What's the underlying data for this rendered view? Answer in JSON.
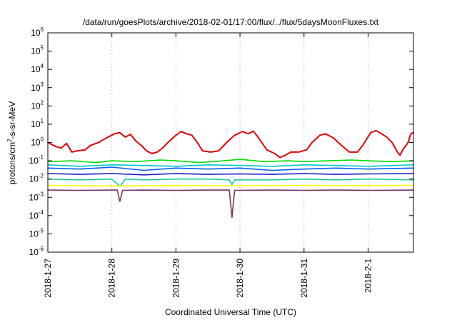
{
  "chart_data": {
    "type": "line",
    "title": "/data/run/goesPlots/archive/2018-02-01/17:00/flux/../flux/5daysMoonFluxes.txt",
    "xlabel": "Coordinated Universal Time (UTC)",
    "ylabel": {
      "prefix": "protons/cm",
      "sup": "2",
      "suffix": "-s-sr-MeV"
    },
    "y_scale": "log",
    "ylim": [
      1e-06,
      1000000.0
    ],
    "y_ticks": [
      {
        "base": "10",
        "exp": "-6",
        "value": 1e-06
      },
      {
        "base": "10",
        "exp": "-5",
        "value": 1e-05
      },
      {
        "base": "10",
        "exp": "-4",
        "value": 0.0001
      },
      {
        "base": "10",
        "exp": "-3",
        "value": 0.001
      },
      {
        "base": "10",
        "exp": "-2",
        "value": 0.01
      },
      {
        "base": "10",
        "exp": "-1",
        "value": 0.1
      },
      {
        "base": "10",
        "exp": "0",
        "value": 1
      },
      {
        "base": "10",
        "exp": "1",
        "value": 10
      },
      {
        "base": "10",
        "exp": "2",
        "value": 100
      },
      {
        "base": "10",
        "exp": "3",
        "value": 1000
      },
      {
        "base": "10",
        "exp": "4",
        "value": 10000
      },
      {
        "base": "10",
        "exp": "5",
        "value": 100000
      },
      {
        "base": "10",
        "exp": "6",
        "value": 1000000
      }
    ],
    "x_axis": "time",
    "xlim": [
      "2018-01-27T00:00",
      "2018-02-01T17:00"
    ],
    "x_ticks": [
      {
        "label": "2018-1-27",
        "t": "2018-01-27T00:00"
      },
      {
        "label": "2018-1-28",
        "t": "2018-01-28T00:00"
      },
      {
        "label": "2018-1-29",
        "t": "2018-01-29T00:00"
      },
      {
        "label": "2018-1-30",
        "t": "2018-01-30T00:00"
      },
      {
        "label": "2018-1-31",
        "t": "2018-01-31T00:00"
      },
      {
        "label": "2018-2-1",
        "t": "2018-02-01T00:00"
      }
    ],
    "grid": {
      "x": "dotted",
      "y": "none"
    },
    "legend": "none",
    "series": [
      {
        "color": "#e00000",
        "points": [
          [
            "2018-01-27T00:00",
            1.0
          ],
          [
            "2018-01-27T03:00",
            0.6
          ],
          [
            "2018-01-27T05:00",
            0.5
          ],
          [
            "2018-01-27T07:00",
            0.9
          ],
          [
            "2018-01-27T09:00",
            0.3
          ],
          [
            "2018-01-27T11:00",
            0.35
          ],
          [
            "2018-01-27T14:00",
            0.4
          ],
          [
            "2018-01-27T16:00",
            0.7
          ],
          [
            "2018-01-27T19:00",
            1.0
          ],
          [
            "2018-01-27T22:00",
            1.8
          ],
          [
            "2018-01-28T01:00",
            3.0
          ],
          [
            "2018-01-28T03:00",
            3.5
          ],
          [
            "2018-01-28T05:00",
            2.0
          ],
          [
            "2018-01-28T07:00",
            2.8
          ],
          [
            "2018-01-28T09:00",
            1.2
          ],
          [
            "2018-01-28T11:00",
            0.7
          ],
          [
            "2018-01-28T13:00",
            0.35
          ],
          [
            "2018-01-28T15:00",
            0.25
          ],
          [
            "2018-01-28T17:00",
            0.3
          ],
          [
            "2018-01-28T19:00",
            0.5
          ],
          [
            "2018-01-28T21:00",
            1.0
          ],
          [
            "2018-01-29T00:00",
            2.5
          ],
          [
            "2018-01-29T02:00",
            4.0
          ],
          [
            "2018-01-29T04:00",
            3.0
          ],
          [
            "2018-01-29T06:00",
            2.5
          ],
          [
            "2018-01-29T08:00",
            1.0
          ],
          [
            "2018-01-29T10:00",
            0.35
          ],
          [
            "2018-01-29T13:00",
            0.3
          ],
          [
            "2018-01-29T16:00",
            0.35
          ],
          [
            "2018-01-29T19:00",
            1.0
          ],
          [
            "2018-01-29T22:00",
            2.5
          ],
          [
            "2018-01-30T01:00",
            4.0
          ],
          [
            "2018-01-30T03:00",
            3.0
          ],
          [
            "2018-01-30T05:00",
            4.2
          ],
          [
            "2018-01-30T07:00",
            1.8
          ],
          [
            "2018-01-30T10:00",
            0.4
          ],
          [
            "2018-01-30T13:00",
            0.25
          ],
          [
            "2018-01-30T15:00",
            0.15
          ],
          [
            "2018-01-30T17:00",
            0.2
          ],
          [
            "2018-01-30T19:00",
            0.3
          ],
          [
            "2018-01-30T22:00",
            0.3
          ],
          [
            "2018-01-31T01:00",
            0.4
          ],
          [
            "2018-01-31T03:00",
            1.0
          ],
          [
            "2018-01-31T06:00",
            2.5
          ],
          [
            "2018-01-31T08:00",
            3.0
          ],
          [
            "2018-01-31T11:00",
            1.8
          ],
          [
            "2018-01-31T14:00",
            0.7
          ],
          [
            "2018-01-31T17:00",
            0.3
          ],
          [
            "2018-01-31T20:00",
            0.3
          ],
          [
            "2018-01-31T22:00",
            0.7
          ],
          [
            "2018-02-01T01:00",
            3.5
          ],
          [
            "2018-02-01T03:00",
            4.5
          ],
          [
            "2018-02-01T05:00",
            3.0
          ],
          [
            "2018-02-01T07:00",
            2.0
          ],
          [
            "2018-02-01T09:00",
            1.0
          ],
          [
            "2018-02-01T11:00",
            0.3
          ],
          [
            "2018-02-01T12:00",
            0.2
          ],
          [
            "2018-02-01T13:00",
            0.4
          ],
          [
            "2018-02-01T15:00",
            1.0
          ],
          [
            "2018-02-01T16:00",
            3.0
          ],
          [
            "2018-02-01T17:00",
            3.5
          ]
        ]
      },
      {
        "color": "#00dd00",
        "points": [
          [
            "2018-01-27T00:00",
            0.09
          ],
          [
            "2018-01-27T09:00",
            0.1
          ],
          [
            "2018-01-27T18:00",
            0.08
          ],
          [
            "2018-01-28T00:00",
            0.1
          ],
          [
            "2018-01-28T09:00",
            0.09
          ],
          [
            "2018-01-28T18:00",
            0.11
          ],
          [
            "2018-01-29T00:00",
            0.1
          ],
          [
            "2018-01-29T09:00",
            0.08
          ],
          [
            "2018-01-29T18:00",
            0.1
          ],
          [
            "2018-01-30T00:00",
            0.12
          ],
          [
            "2018-01-30T09:00",
            0.09
          ],
          [
            "2018-01-30T18:00",
            0.1
          ],
          [
            "2018-01-31T00:00",
            0.09
          ],
          [
            "2018-01-31T09:00",
            0.1
          ],
          [
            "2018-01-31T18:00",
            0.11
          ],
          [
            "2018-02-01T00:00",
            0.1
          ],
          [
            "2018-02-01T09:00",
            0.09
          ],
          [
            "2018-02-01T17:00",
            0.1
          ]
        ]
      },
      {
        "color": "#00c8c8",
        "points": [
          [
            "2018-01-27T00:00",
            0.06
          ],
          [
            "2018-01-27T12:00",
            0.05
          ],
          [
            "2018-01-28T00:00",
            0.06
          ],
          [
            "2018-01-28T12:00",
            0.055
          ],
          [
            "2018-01-29T00:00",
            0.05
          ],
          [
            "2018-01-29T12:00",
            0.06
          ],
          [
            "2018-01-30T00:00",
            0.055
          ],
          [
            "2018-01-30T12:00",
            0.05
          ],
          [
            "2018-01-31T00:00",
            0.06
          ],
          [
            "2018-01-31T12:00",
            0.055
          ],
          [
            "2018-02-01T00:00",
            0.05
          ],
          [
            "2018-02-01T17:00",
            0.06
          ]
        ]
      },
      {
        "color": "#0060ff",
        "points": [
          [
            "2018-01-27T00:00",
            0.04
          ],
          [
            "2018-01-27T12:00",
            0.035
          ],
          [
            "2018-01-28T00:00",
            0.045
          ],
          [
            "2018-01-28T12:00",
            0.03
          ],
          [
            "2018-01-29T00:00",
            0.04
          ],
          [
            "2018-01-29T12:00",
            0.035
          ],
          [
            "2018-01-30T00:00",
            0.04
          ],
          [
            "2018-01-30T12:00",
            0.03
          ],
          [
            "2018-01-31T00:00",
            0.035
          ],
          [
            "2018-01-31T12:00",
            0.04
          ],
          [
            "2018-02-01T00:00",
            0.035
          ],
          [
            "2018-02-01T17:00",
            0.04
          ]
        ]
      },
      {
        "color": "#1818c8",
        "points": [
          [
            "2018-01-27T00:00",
            0.02
          ],
          [
            "2018-01-27T12:00",
            0.018
          ],
          [
            "2018-01-28T00:00",
            0.02
          ],
          [
            "2018-01-28T12:00",
            0.017
          ],
          [
            "2018-01-29T00:00",
            0.02
          ],
          [
            "2018-01-29T12:00",
            0.018
          ],
          [
            "2018-01-30T00:00",
            0.019
          ],
          [
            "2018-01-30T12:00",
            0.018
          ],
          [
            "2018-01-31T00:00",
            0.02
          ],
          [
            "2018-01-31T12:00",
            0.018
          ],
          [
            "2018-02-01T00:00",
            0.019
          ],
          [
            "2018-02-01T17:00",
            0.02
          ]
        ]
      },
      {
        "color": "#20c8a0",
        "points": [
          [
            "2018-01-27T00:00",
            0.01
          ],
          [
            "2018-01-27T12:00",
            0.009
          ],
          [
            "2018-01-28T00:00",
            0.01
          ],
          [
            "2018-01-28T03:00",
            0.004
          ],
          [
            "2018-01-28T05:00",
            0.01
          ],
          [
            "2018-01-28T12:00",
            0.009
          ],
          [
            "2018-01-29T00:00",
            0.01
          ],
          [
            "2018-01-29T12:00",
            0.01
          ],
          [
            "2018-01-29T20:00",
            0.009
          ],
          [
            "2018-01-29T21:00",
            0.005
          ],
          [
            "2018-01-29T22:00",
            0.009
          ],
          [
            "2018-01-30T12:00",
            0.009
          ],
          [
            "2018-01-31T00:00",
            0.01
          ],
          [
            "2018-01-31T12:00",
            0.009
          ],
          [
            "2018-02-01T00:00",
            0.01
          ],
          [
            "2018-02-01T17:00",
            0.009
          ]
        ]
      },
      {
        "color": "#ffff00",
        "points": [
          [
            "2018-01-27T00:00",
            0.0045
          ],
          [
            "2018-01-28T00:00",
            0.0042
          ],
          [
            "2018-01-29T00:00",
            0.0044
          ],
          [
            "2018-01-30T00:00",
            0.0043
          ],
          [
            "2018-01-31T00:00",
            0.0045
          ],
          [
            "2018-02-01T00:00",
            0.0044
          ],
          [
            "2018-02-01T17:00",
            0.0045
          ]
        ]
      },
      {
        "color": "#7a3060",
        "points": [
          [
            "2018-01-27T00:00",
            0.0025
          ],
          [
            "2018-01-27T12:00",
            0.0024
          ],
          [
            "2018-01-28T00:00",
            0.0025
          ],
          [
            "2018-01-28T02:00",
            0.0025
          ],
          [
            "2018-01-28T03:00",
            0.0006
          ],
          [
            "2018-01-28T04:00",
            0.0024
          ],
          [
            "2018-01-28T12:00",
            0.0025
          ],
          [
            "2018-01-29T00:00",
            0.0024
          ],
          [
            "2018-01-29T12:00",
            0.0025
          ],
          [
            "2018-01-29T20:00",
            0.0025
          ],
          [
            "2018-01-29T21:00",
            8e-05
          ],
          [
            "2018-01-29T22:00",
            0.0024
          ],
          [
            "2018-01-30T12:00",
            0.0025
          ],
          [
            "2018-01-31T00:00",
            0.0024
          ],
          [
            "2018-01-31T12:00",
            0.0025
          ],
          [
            "2018-02-01T00:00",
            0.0024
          ],
          [
            "2018-02-01T17:00",
            0.0025
          ]
        ]
      }
    ]
  }
}
